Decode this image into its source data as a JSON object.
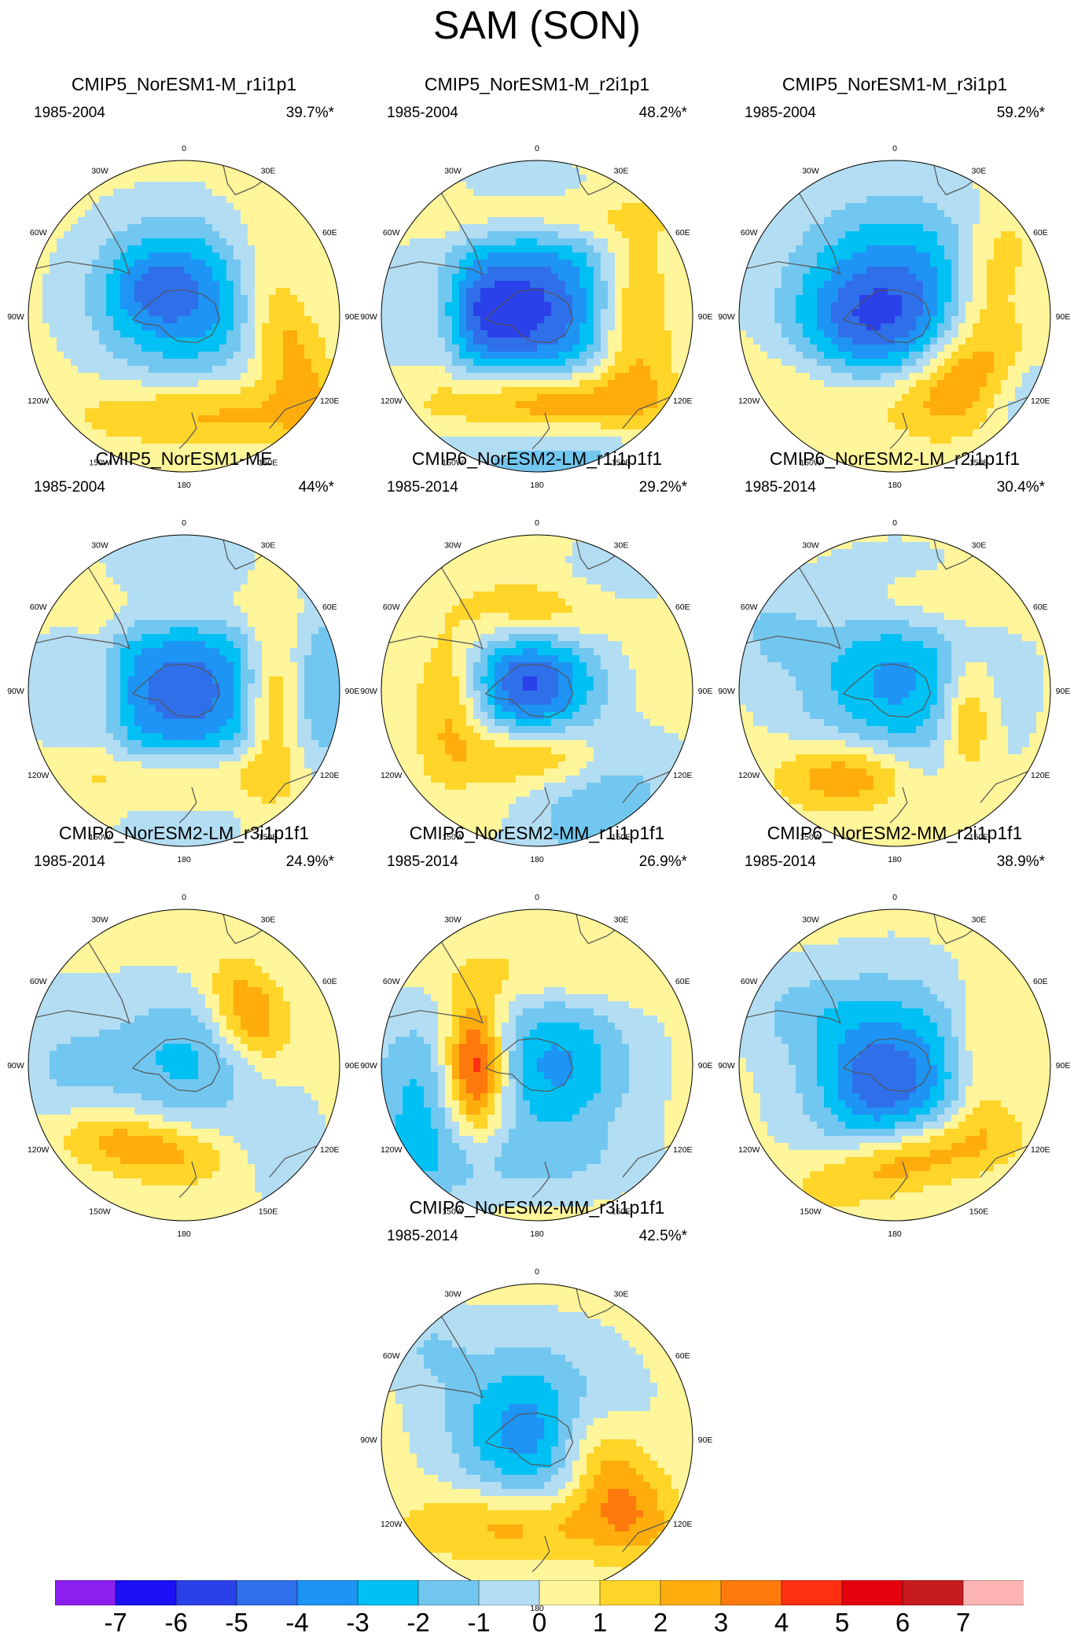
{
  "title": "SAM (SON)",
  "lon_labels": [
    "0",
    "30E",
    "60E",
    "90E",
    "120E",
    "150E",
    "180",
    "150W",
    "120W",
    "90W",
    "60W",
    "30W"
  ],
  "panels": [
    {
      "name": "CMIP5_NorESM1-M_r1i1p1",
      "period": "1985-2004",
      "pct": "39.7%*"
    },
    {
      "name": "CMIP5_NorESM1-M_r2i1p1",
      "period": "1985-2004",
      "pct": "48.2%*"
    },
    {
      "name": "CMIP5_NorESM1-M_r3i1p1",
      "period": "1985-2004",
      "pct": "59.2%*"
    },
    {
      "name": "CMIP5_NorESM1-ME",
      "period": "1985-2004",
      "pct": "44%*"
    },
    {
      "name": "CMIP6_NorESM2-LM_r1i1p1f1",
      "period": "1985-2014",
      "pct": "29.2%*"
    },
    {
      "name": "CMIP6_NorESM2-LM_r2i1p1f1",
      "period": "1985-2014",
      "pct": "30.4%*"
    },
    {
      "name": "CMIP6_NorESM2-LM_r3i1p1f1",
      "period": "1985-2014",
      "pct": "24.9%*"
    },
    {
      "name": "CMIP6_NorESM2-MM_r1i1p1f1",
      "period": "1985-2014",
      "pct": "26.9%*"
    },
    {
      "name": "CMIP6_NorESM2-MM_r2i1p1f1",
      "period": "1985-2014",
      "pct": "38.9%*"
    },
    {
      "name": "CMIP6_NorESM2-MM_r3i1p1f1",
      "period": "1985-2014",
      "pct": "42.5%*"
    }
  ],
  "colorbar": {
    "labels": [
      "-7",
      "-6",
      "-5",
      "-4",
      "-3",
      "-2",
      "-1",
      "0",
      "1",
      "2",
      "3",
      "4",
      "5",
      "6",
      "7"
    ],
    "colors": [
      "#8B1FF0",
      "#1A0FF5",
      "#2A40E8",
      "#2F6FEA",
      "#1E94F4",
      "#00C0F4",
      "#72C7F0",
      "#B3DDF2",
      "#FFF59A",
      "#FFD52A",
      "#FFAD0D",
      "#FF7A0D",
      "#FF3012",
      "#E5000E",
      "#C81B20",
      "#FFB4B4"
    ]
  }
}
